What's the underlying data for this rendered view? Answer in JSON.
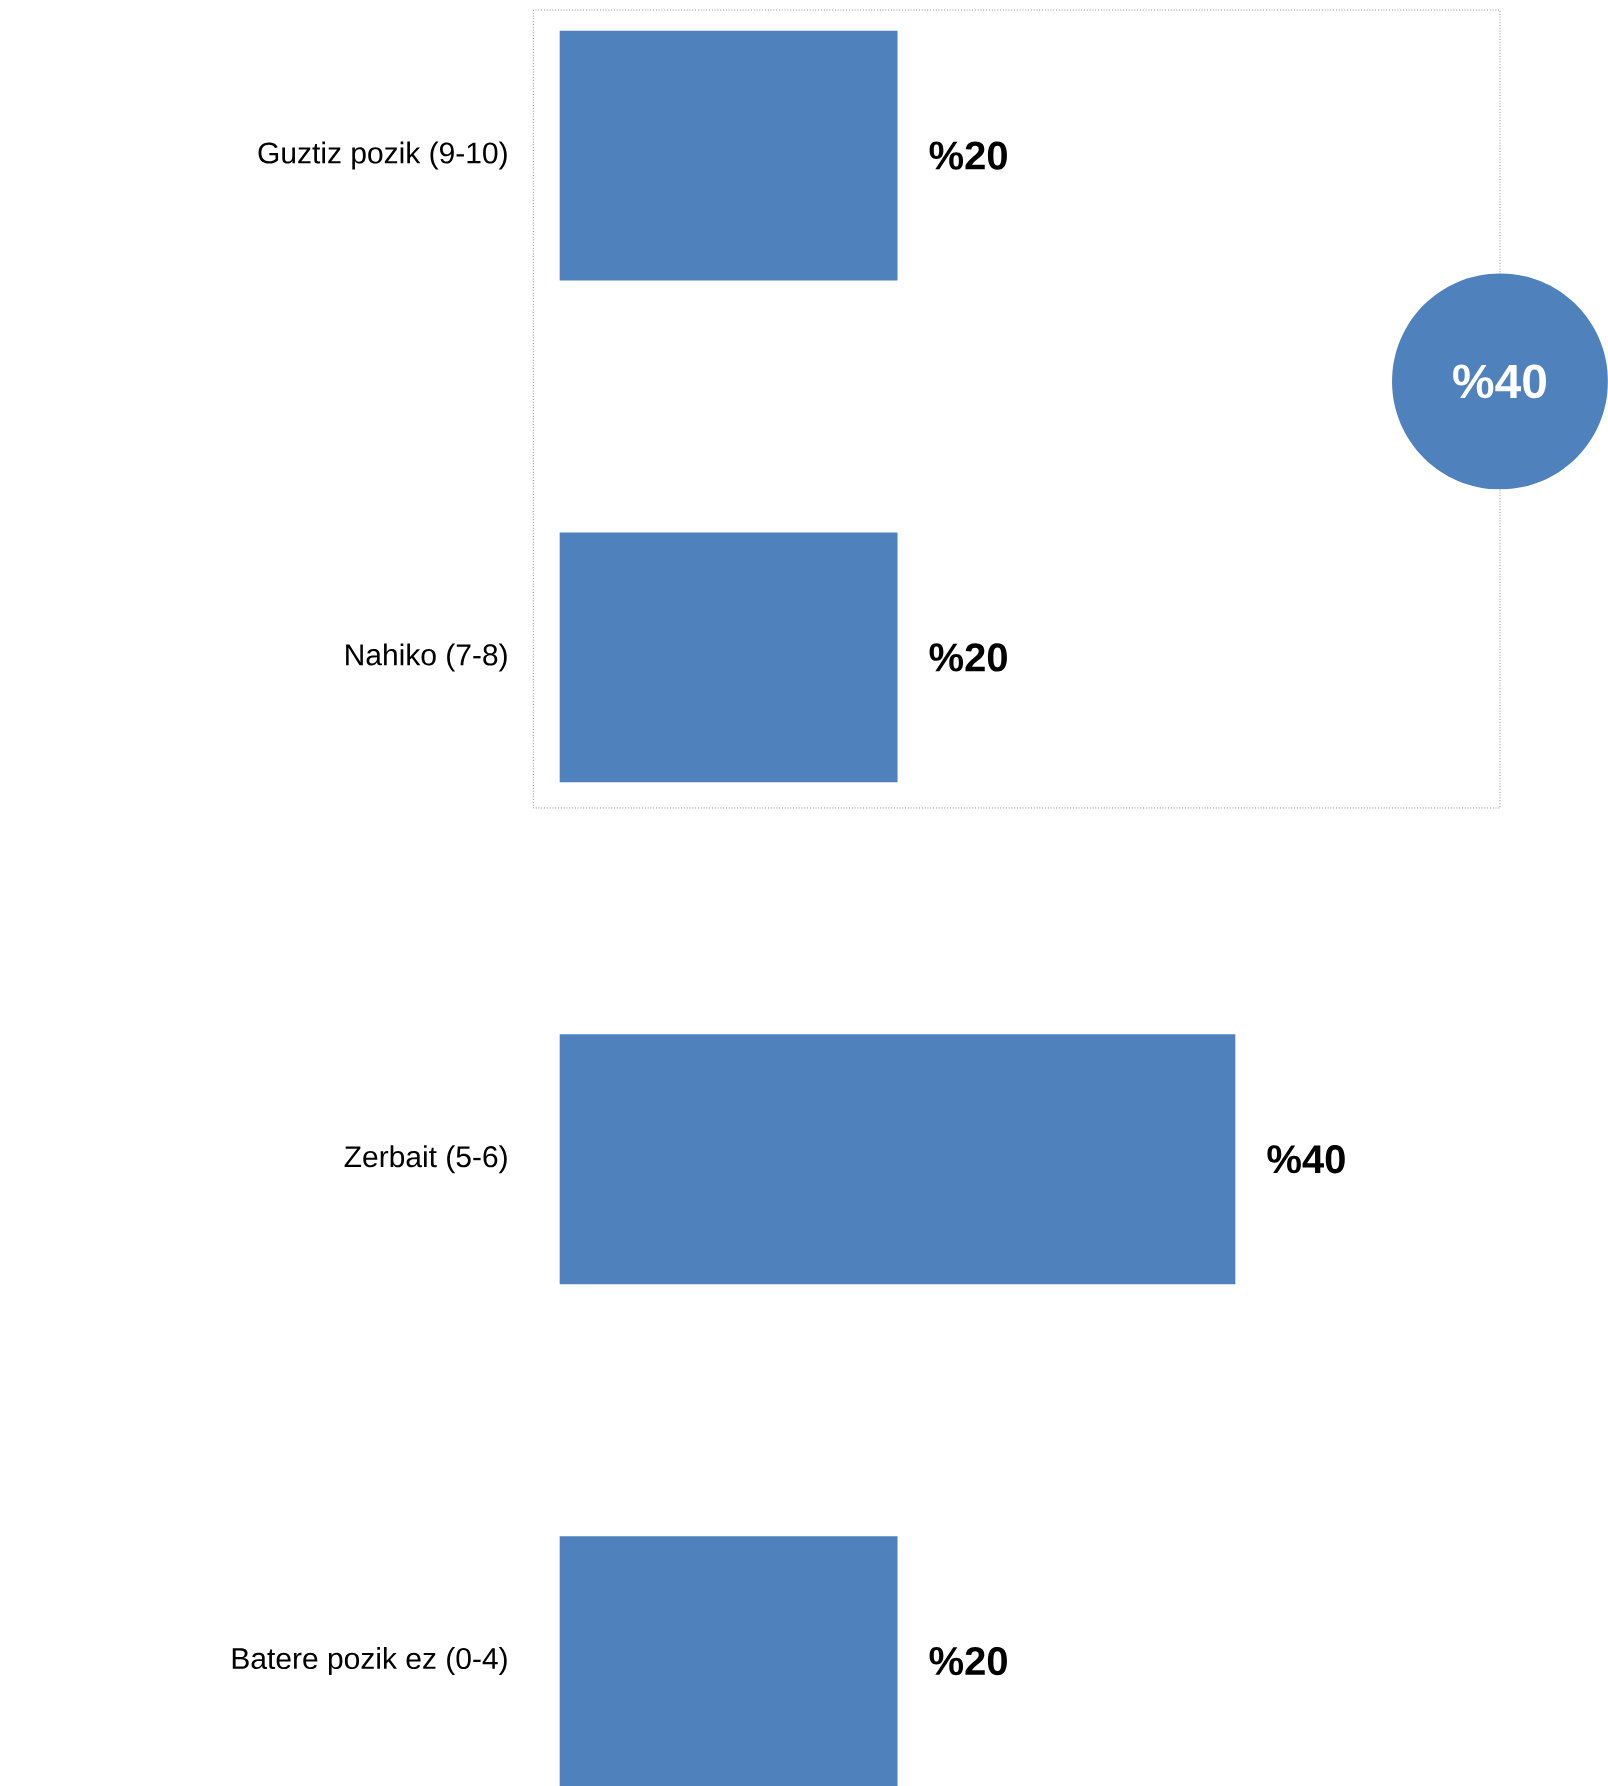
{
  "chart_data": {
    "type": "bar",
    "orientation": "horizontal",
    "categories": [
      "Guztiz pozik (9-10)",
      "Nahiko (7-8)",
      "Zerbait (5-6)",
      "Batere pozik ez (0-4)"
    ],
    "values": [
      20,
      20,
      40,
      20
    ],
    "value_labels": [
      "%20",
      "%20",
      "%40",
      "%20"
    ],
    "color": "#4f81bd",
    "annotations": [
      "%40"
    ]
  }
}
